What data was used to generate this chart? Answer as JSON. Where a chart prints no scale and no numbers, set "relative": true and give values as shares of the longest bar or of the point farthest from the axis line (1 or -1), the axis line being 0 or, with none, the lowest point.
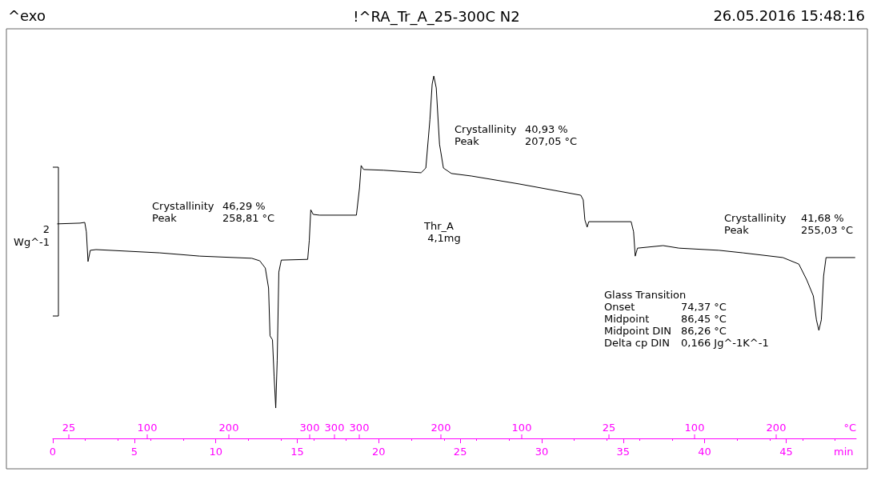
{
  "chart_data": {
    "type": "line",
    "title": "!^RA_Tr_A_25-300C N2",
    "ylabel": "Wg^-1",
    "xlabel": "min",
    "relative": true,
    "marker": "none",
    "line_style": "solid",
    "annotations": [
      "^exo",
      "26.05.2016 15:48:16",
      "2",
      "Crystallinity\t46,29 %\nPeak\t258,81 °C",
      "Crystallinity\t40,93 %\nPeak\t207,05 °C",
      "Thr_A\n 4,1mg",
      "Crystallinity\t41,68 %\nPeak\t255,03 °C",
      "Glass Transition\nOnset\t74,37 °C\nMidpoint\t86,45 °C\nMidpoint DIN\t86,26 °C\nDelta cp DIN\t0,166 Jg^-1K^-1",
      "°C",
      "25",
      "100",
      "200",
      "300",
      "300",
      "300",
      "200",
      "100",
      "25",
      "100",
      "200"
    ],
    "xlim": [
      0,
      49.3
    ],
    "xticks": [
      0,
      5,
      10,
      15,
      20,
      25,
      30,
      35,
      40,
      45
    ],
    "series": [
      {
        "color": "#000000",
        "x": [
          0.29,
          1.67,
          1.96,
          2.06,
          2.16,
          2.3,
          2.65,
          6.57,
          9.02,
          12.21,
          12.7,
          13.04,
          13.24,
          13.33,
          13.48,
          13.58,
          13.68,
          13.77,
          13.87,
          14.02,
          15.64,
          15.74,
          15.83,
          15.98,
          16.37,
          18.63,
          18.82,
          18.92,
          19.07,
          20.29,
          22.6,
          22.89,
          23.14,
          23.28,
          23.38,
          23.53,
          23.73,
          23.97,
          24.46,
          25.69,
          28.63,
          32.4,
          32.55,
          32.65,
          32.79,
          32.89,
          35.49,
          35.64,
          35.74,
          35.88,
          37.45,
          38.43,
          40.88,
          42.35,
          44.8,
          45.78,
          46.27,
          46.67,
          46.86,
          47.01,
          47.16,
          47.3,
          47.45,
          49.22
        ],
        "values": [
          0.592,
          0.594,
          0.596,
          0.57,
          0.488,
          0.519,
          0.521,
          0.512,
          0.503,
          0.497,
          0.49,
          0.47,
          0.415,
          0.283,
          0.272,
          0.172,
          0.084,
          0.216,
          0.459,
          0.492,
          0.494,
          0.547,
          0.631,
          0.618,
          0.616,
          0.616,
          0.691,
          0.753,
          0.742,
          0.74,
          0.733,
          0.746,
          0.879,
          0.978,
          1,
          0.967,
          0.812,
          0.746,
          0.731,
          0.724,
          0.702,
          0.671,
          0.658,
          0.603,
          0.583,
          0.598,
          0.598,
          0.57,
          0.503,
          0.525,
          0.532,
          0.525,
          0.519,
          0.512,
          0.499,
          0.481,
          0.437,
          0.393,
          0.327,
          0.298,
          0.327,
          0.448,
          0.499,
          0.499
        ]
      }
    ]
  }
}
